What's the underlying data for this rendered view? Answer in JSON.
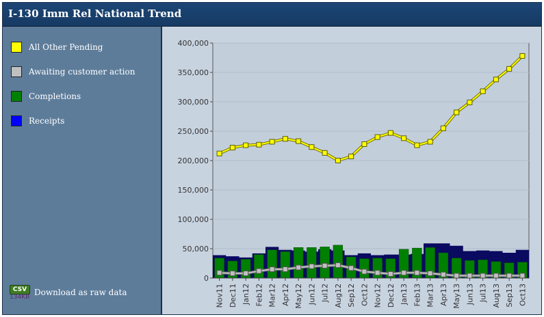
{
  "window": {
    "title": "I-130 Imm Rel National Trend"
  },
  "legend": {
    "items": [
      {
        "label": "All Other Pending",
        "color": "#ffff00",
        "icon": "yellow-square"
      },
      {
        "label": "Awaiting customer action",
        "color": "#c0c0c0",
        "icon": "gray-square"
      },
      {
        "label": "Completions",
        "color": "#008000",
        "icon": "green-square"
      },
      {
        "label": "Receipts",
        "color": "#0000ff",
        "icon": "blue-square"
      }
    ]
  },
  "download": {
    "icon_label": "CSV",
    "file_size": "134KB",
    "label": "Download as raw data"
  },
  "chart_data": {
    "type": "bar",
    "categories": [
      "Nov11",
      "Dec11",
      "Jan12",
      "Feb12",
      "Mar12",
      "Apr12",
      "May12",
      "Jun12",
      "Jul12",
      "Aug12",
      "Sep12",
      "Oct12",
      "Nov12",
      "Dec12",
      "Jan13",
      "Feb13",
      "Mar13",
      "Apr13",
      "May13",
      "Jun13",
      "Jul13",
      "Aug13",
      "Sep13",
      "Oct13"
    ],
    "ylim": [
      0,
      400000
    ],
    "yticks": [
      "0",
      "50,000",
      "100,000",
      "150,000",
      "200,000",
      "250,000",
      "300,000",
      "350,000",
      "400,000"
    ],
    "ytick_values": [
      0,
      50000,
      100000,
      150000,
      200000,
      250000,
      300000,
      350000,
      400000
    ],
    "grid": true,
    "series": [
      {
        "name": "All Other Pending",
        "type": "line",
        "color": "#ffff00",
        "values": [
          212000,
          222000,
          226000,
          227000,
          232000,
          237000,
          233000,
          223000,
          213000,
          200000,
          207000,
          228000,
          240000,
          247000,
          238000,
          226000,
          232000,
          255000,
          282000,
          299000,
          318000,
          338000,
          356000,
          378000
        ]
      },
      {
        "name": "Awaiting customer action",
        "type": "line",
        "color": "#c0c0c0",
        "values": [
          9000,
          8000,
          8000,
          12000,
          15000,
          15000,
          18000,
          20000,
          21000,
          22000,
          17000,
          11000,
          9000,
          7000,
          9000,
          9000,
          8000,
          6000,
          4000,
          4000,
          4000,
          4000,
          4000,
          4000
        ]
      },
      {
        "name": "Completions",
        "type": "bar",
        "color": "#008000",
        "values": [
          34000,
          29000,
          32000,
          40000,
          48000,
          45000,
          52000,
          52000,
          53000,
          56000,
          36000,
          33000,
          34000,
          33000,
          49000,
          51000,
          52000,
          43000,
          34000,
          30000,
          31000,
          28000,
          26000,
          27000
        ]
      },
      {
        "name": "Receipts",
        "type": "area",
        "color": "#0a0a60",
        "values": [
          39000,
          37000,
          35000,
          42000,
          53000,
          48000,
          47000,
          45000,
          49000,
          47000,
          39000,
          42000,
          39000,
          40000,
          40000,
          41000,
          59000,
          59000,
          55000,
          46000,
          47000,
          46000,
          43000,
          48000
        ]
      }
    ]
  }
}
